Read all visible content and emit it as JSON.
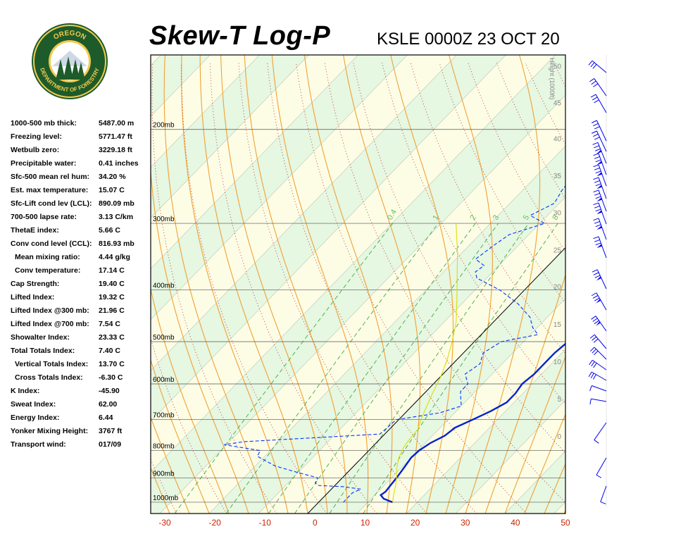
{
  "header": {
    "title": "Skew-T Log-P",
    "station_time": "KSLE 0000Z 23 OCT 20"
  },
  "logo": {
    "text_top": "OREGON",
    "text_bottom": "DEPARTMENT OF FORESTRY"
  },
  "stats": [
    {
      "label": "1000-500 mb thick:",
      "value": "5487.00 m",
      "indent": false
    },
    {
      "label": "Freezing level:",
      "value": "5771.47 ft",
      "indent": false
    },
    {
      "label": "Wetbulb zero:",
      "value": "3229.18 ft",
      "indent": false
    },
    {
      "label": "Precipitable water:",
      "value": "0.41 inches",
      "indent": false
    },
    {
      "label": "Sfc-500 mean rel hum:",
      "value": "34.20 %",
      "indent": false
    },
    {
      "label": "Est. max temperature:",
      "value": "15.07 C",
      "indent": false
    },
    {
      "label": "Sfc-Lift cond lev (LCL):",
      "value": "890.09 mb",
      "indent": false
    },
    {
      "label": "700-500 lapse rate:",
      "value": "3.13 C/km",
      "indent": false
    },
    {
      "label": "ThetaE index:",
      "value": "5.66 C",
      "indent": false
    },
    {
      "label": "Conv cond level (CCL):",
      "value": "816.93 mb",
      "indent": false
    },
    {
      "label": "Mean mixing ratio:",
      "value": "4.44 g/kg",
      "indent": true
    },
    {
      "label": "Conv temperature:",
      "value": "17.14 C",
      "indent": true
    },
    {
      "label": "Cap Strength:",
      "value": "19.40 C",
      "indent": false
    },
    {
      "label": "Lifted Index:",
      "value": "19.32 C",
      "indent": false
    },
    {
      "label": "Lifted Index @300 mb:",
      "value": "21.96 C",
      "indent": false
    },
    {
      "label": "Lifted Index @700 mb:",
      "value": "7.54 C",
      "indent": false
    },
    {
      "label": "Showalter Index:",
      "value": "23.33 C",
      "indent": false
    },
    {
      "label": "Total Totals Index:",
      "value": "7.40 C",
      "indent": false
    },
    {
      "label": "Vertical Totals Index:",
      "value": "13.70 C",
      "indent": true
    },
    {
      "label": "Cross Totals Index:",
      "value": "-6.30 C",
      "indent": true
    },
    {
      "label": "K Index:",
      "value": "-45.90",
      "indent": false
    },
    {
      "label": "Sweat Index:",
      "value": "62.00",
      "indent": false
    },
    {
      "label": "Energy Index:",
      "value": "6.44",
      "indent": false
    },
    {
      "label": "Yonker Mixing Height:",
      "value": "3767 ft",
      "indent": false
    },
    {
      "label": "Transport wind:",
      "value": "017/09",
      "indent": false
    }
  ],
  "chart_data": {
    "type": "line",
    "title": "Skew-T Log-P",
    "subtitle": "KSLE 0000Z 23 OCT 20",
    "xlabel": "",
    "ylabel": "",
    "x_ticks": [
      -30,
      -20,
      -10,
      0,
      10,
      20,
      30,
      40,
      50
    ],
    "xlim": [
      -30,
      50
    ],
    "pressure_levels": [
      {
        "p": 200,
        "label": "200mb"
      },
      {
        "p": 300,
        "label": "300mb"
      },
      {
        "p": 400,
        "label": "400mb"
      },
      {
        "p": 500,
        "label": "500mb"
      },
      {
        "p": 600,
        "label": "600mb"
      },
      {
        "p": 700,
        "label": "700mb"
      },
      {
        "p": 800,
        "label": "800mb"
      },
      {
        "p": 900,
        "label": "900mb"
      },
      {
        "p": 1000,
        "label": "1000mb"
      }
    ],
    "height_axis_label": "Height (1000ft)",
    "height_ticks": [
      {
        "label": "50",
        "p": 152
      },
      {
        "label": "45",
        "p": 178
      },
      {
        "label": "40",
        "p": 208
      },
      {
        "label": "35",
        "p": 244
      },
      {
        "label": "30",
        "p": 286
      },
      {
        "label": "25",
        "p": 336
      },
      {
        "label": "20",
        "p": 394
      },
      {
        "label": "15",
        "p": 463
      },
      {
        "label": "10",
        "p": 544
      },
      {
        "label": "5",
        "p": 640
      },
      {
        "label": "0",
        "p": 752
      }
    ],
    "mixing_ratio_labels": [
      "0.4",
      "1",
      "2",
      "3",
      "5",
      "8"
    ],
    "series": [
      {
        "name": "",
        "role": "temperature",
        "color": "#0022cc",
        "points": [
          [
            15.0,
            1000
          ],
          [
            12.5,
            985
          ],
          [
            11.2,
            970
          ],
          [
            11.5,
            955
          ],
          [
            11.3,
            935
          ],
          [
            11.0,
            900
          ],
          [
            10.5,
            860
          ],
          [
            10.0,
            825
          ],
          [
            10.2,
            800
          ],
          [
            11.0,
            775
          ],
          [
            12.5,
            750
          ],
          [
            13.0,
            725
          ],
          [
            15.0,
            700
          ],
          [
            17.0,
            675
          ],
          [
            18.5,
            650
          ],
          [
            18.5,
            625
          ],
          [
            18.0,
            600
          ],
          [
            18.5,
            575
          ],
          [
            18.5,
            550
          ],
          [
            18.5,
            525
          ],
          [
            19.0,
            500
          ],
          [
            18.0,
            475
          ],
          [
            17.8,
            450
          ],
          [
            17.5,
            425
          ],
          [
            15.5,
            400
          ],
          [
            12.5,
            375
          ],
          [
            9.0,
            350
          ],
          [
            5.5,
            325
          ],
          [
            2.5,
            300
          ],
          [
            0.0,
            275
          ],
          [
            -2.5,
            250
          ],
          [
            -5.0,
            230
          ],
          [
            -6.0,
            215
          ],
          [
            -6.0,
            205
          ],
          [
            -7.0,
            195
          ],
          [
            -9.0,
            185
          ],
          [
            -6.0,
            175
          ],
          [
            5.0,
            160
          ],
          [
            18.0,
            148
          ]
        ]
      },
      {
        "name": "",
        "role": "dewpoint",
        "color": "#0033ff",
        "points": [
          [
            5.0,
            1000
          ],
          [
            5.0,
            960
          ],
          [
            6.0,
            945
          ],
          [
            2.0,
            935
          ],
          [
            -3.5,
            930
          ],
          [
            -4.5,
            920
          ],
          [
            -5.0,
            900
          ],
          [
            -10.0,
            880
          ],
          [
            -16.0,
            855
          ],
          [
            -21.5,
            820
          ],
          [
            -22.0,
            800
          ],
          [
            -30.5,
            780
          ],
          [
            -27.0,
            770
          ],
          [
            -1.0,
            745
          ],
          [
            -0.5,
            700
          ],
          [
            7.0,
            680
          ],
          [
            10.0,
            660
          ],
          [
            8.5,
            640
          ],
          [
            7.0,
            620
          ],
          [
            7.0,
            600
          ],
          [
            4.5,
            575
          ],
          [
            5.5,
            550
          ],
          [
            4.0,
            525
          ],
          [
            5.5,
            500
          ],
          [
            11.5,
            485
          ],
          [
            9.0,
            470
          ],
          [
            6.5,
            450
          ],
          [
            1.5,
            425
          ],
          [
            -5.0,
            400
          ],
          [
            -12.0,
            380
          ],
          [
            -13.5,
            370
          ],
          [
            -13.0,
            360
          ],
          [
            -16.0,
            350
          ],
          [
            -15.0,
            330
          ],
          [
            -14.0,
            315
          ],
          [
            -9.0,
            300
          ],
          [
            -13.5,
            290
          ],
          [
            -11.0,
            275
          ],
          [
            -12.0,
            260
          ],
          [
            -12.5,
            245
          ],
          [
            -15.5,
            230
          ],
          [
            -19.0,
            215
          ],
          [
            -19.5,
            200
          ],
          [
            -18.5,
            190
          ],
          [
            -17.0,
            180
          ],
          [
            -20.0,
            170
          ],
          [
            -25.0,
            160
          ],
          [
            -28.0,
            150
          ]
        ]
      },
      {
        "name": "",
        "role": "parcel",
        "color": "#dddd00",
        "points": [
          [
            15.0,
            1000
          ],
          [
            13.8,
            970
          ],
          [
            12.5,
            935
          ],
          [
            11.0,
            900
          ],
          [
            9.0,
            860
          ],
          [
            7.5,
            825
          ],
          [
            6.5,
            790
          ],
          [
            6.0,
            760
          ],
          [
            5.8,
            730
          ],
          [
            4.5,
            700
          ],
          [
            3.0,
            660
          ],
          [
            1.5,
            620
          ],
          [
            0.0,
            580
          ],
          [
            -2.0,
            540
          ],
          [
            -4.5,
            500
          ],
          [
            -7.5,
            460
          ],
          [
            -11.5,
            420
          ],
          [
            -16.0,
            380
          ],
          [
            -21.0,
            340
          ],
          [
            -27.0,
            300
          ]
        ]
      }
    ],
    "grid": true
  },
  "winds": {
    "staff_x": 861,
    "barbs": [
      {
        "y": 103,
        "len": 26,
        "angle": 140
      },
      {
        "y": 136,
        "len": 30,
        "angle": 125
      },
      {
        "y": 160,
        "len": 30,
        "angle": 120
      },
      {
        "y": 200,
        "len": 32,
        "angle": 115
      },
      {
        "y": 215,
        "len": 32,
        "angle": 115
      },
      {
        "y": 232,
        "len": 32,
        "angle": 112
      },
      {
        "y": 248,
        "len": 32,
        "angle": 110
      },
      {
        "y": 264,
        "len": 32,
        "angle": 110
      },
      {
        "y": 282,
        "len": 32,
        "angle": 110
      },
      {
        "y": 300,
        "len": 32,
        "angle": 110
      },
      {
        "y": 318,
        "len": 32,
        "angle": 110
      },
      {
        "y": 340,
        "len": 32,
        "angle": 110
      },
      {
        "y": 366,
        "len": 32,
        "angle": 110
      },
      {
        "y": 410,
        "len": 30,
        "angle": 115
      },
      {
        "y": 440,
        "len": 28,
        "angle": 120
      },
      {
        "y": 470,
        "len": 26,
        "angle": 125
      },
      {
        "y": 495,
        "len": 26,
        "angle": 130
      },
      {
        "y": 510,
        "len": 24,
        "angle": 135
      },
      {
        "y": 525,
        "len": 24,
        "angle": 145
      },
      {
        "y": 540,
        "len": 24,
        "angle": 150
      },
      {
        "y": 555,
        "len": 22,
        "angle": 160
      },
      {
        "y": 570,
        "len": 22,
        "angle": 170
      },
      {
        "y": 600,
        "len": 30,
        "angle": 235
      },
      {
        "y": 650,
        "len": 28,
        "angle": 240
      },
      {
        "y": 690,
        "len": 24,
        "angle": 250
      }
    ]
  }
}
